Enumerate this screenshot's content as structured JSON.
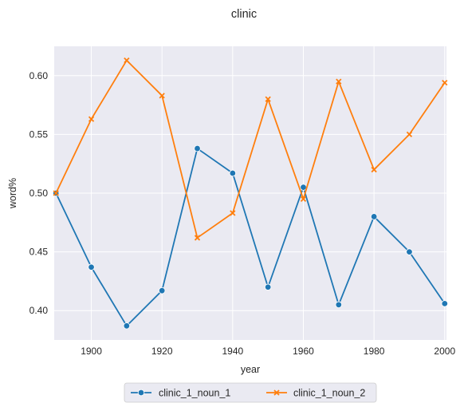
{
  "chart_data": {
    "type": "line",
    "title": "clinic",
    "xlabel": "year",
    "ylabel": "word%",
    "x": [
      1890,
      1900,
      1910,
      1920,
      1930,
      1940,
      1950,
      1960,
      1970,
      1980,
      1990,
      2000
    ],
    "xlim": [
      1889.5,
      2000.5
    ],
    "ylim": [
      0.375,
      0.625
    ],
    "xticks": [
      1900,
      1920,
      1940,
      1960,
      1980,
      2000
    ],
    "yticks": [
      0.4,
      0.45,
      0.5,
      0.55,
      0.6
    ],
    "grid": true,
    "legend_position": "bottom-center",
    "series": [
      {
        "name": "clinic_1_noun_1",
        "color": "#1f77b4",
        "marker": "circle",
        "values": [
          0.5,
          0.437,
          0.387,
          0.417,
          0.538,
          0.517,
          0.42,
          0.505,
          0.405,
          0.48,
          0.45,
          0.406
        ]
      },
      {
        "name": "clinic_1_noun_2",
        "color": "#ff7f0e",
        "marker": "x",
        "values": [
          0.5,
          0.563,
          0.613,
          0.583,
          0.462,
          0.483,
          0.58,
          0.495,
          0.595,
          0.52,
          0.55,
          0.594
        ]
      }
    ]
  }
}
